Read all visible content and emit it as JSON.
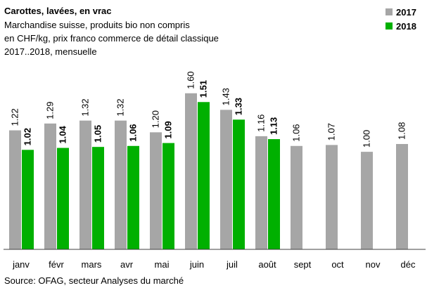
{
  "chart_data": {
    "type": "bar",
    "title": "Carottes, lavées, en vrac",
    "subtitle": [
      "Marchandise suisse, produits bio non compris",
      "en CHF/kg,  prix franco commerce de détail classique",
      "2017..2018, mensuelle"
    ],
    "source": "Source:  OFAG, secteur Analyses du marché",
    "categories": [
      "janv",
      "févr",
      "mars",
      "avr",
      "mai",
      "juin",
      "juil",
      "août",
      "sept",
      "oct",
      "nov",
      "déc"
    ],
    "series": [
      {
        "name": "2017",
        "color": "#a6a6a6",
        "values": [
          1.22,
          1.29,
          1.32,
          1.32,
          1.2,
          1.6,
          1.43,
          1.16,
          1.06,
          1.07,
          1.0,
          1.08
        ],
        "value_labels": [
          "1.22",
          "1.29",
          "1.32",
          "1.32",
          "1.20",
          "1.60",
          "1.43",
          "1.16",
          "1.06",
          "1.07",
          "1.00",
          "1.08"
        ]
      },
      {
        "name": "2018",
        "color": "#00b000",
        "values": [
          1.02,
          1.04,
          1.05,
          1.06,
          1.09,
          1.51,
          1.33,
          1.13,
          null,
          null,
          null,
          null
        ],
        "value_labels": [
          "1.02",
          "1.04",
          "1.05",
          "1.06",
          "1.09",
          "1.51",
          "1.33",
          "1.13",
          null,
          null,
          null,
          null
        ]
      }
    ],
    "ylim": [
      0,
      1.8
    ],
    "legend": "top-right"
  }
}
